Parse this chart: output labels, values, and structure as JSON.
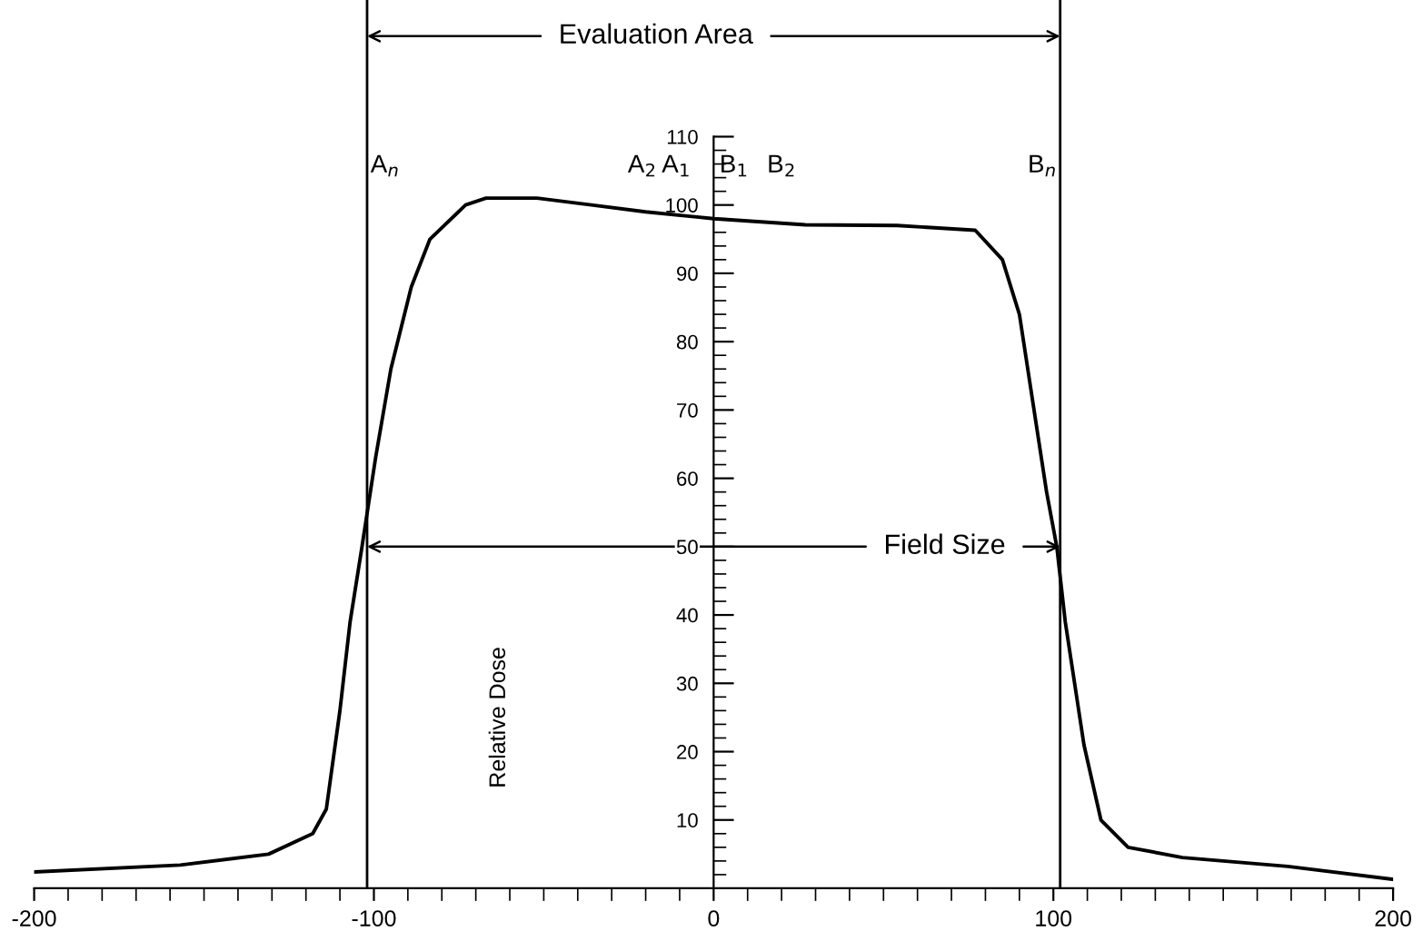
{
  "chart_data": {
    "type": "line",
    "ylabel": "Relative Dose",
    "x": [
      -200,
      -157,
      -131,
      -118,
      -114,
      -110,
      -107,
      -103.5,
      -99.5,
      -95,
      -89,
      -83.5,
      -73,
      -67,
      -52,
      -36,
      -20,
      0,
      27,
      54,
      77,
      85,
      90,
      94,
      98,
      101,
      103.5,
      109,
      114,
      122,
      138,
      169,
      200
    ],
    "series": [
      {
        "color": "#000000",
        "values": [
          2.4,
          3.4,
          5,
          8,
          11.6,
          26,
          39,
          50,
          63,
          76,
          88,
          95,
          100,
          101,
          101,
          100,
          99,
          98,
          97.1,
          97,
          96.3,
          92,
          84,
          71,
          58,
          50,
          39,
          21,
          10,
          6,
          4.5,
          3.2,
          1.3
        ]
      }
    ],
    "xlim": [
      -200,
      200
    ],
    "ylim": [
      0,
      130
    ],
    "xticks": [
      -200,
      {
        "value": -190,
        "label": null
      },
      {
        "value": -180,
        "label": null
      },
      {
        "value": -170,
        "label": null
      },
      {
        "value": -160,
        "label": null
      },
      {
        "value": -150,
        "label": null
      },
      {
        "value": -140,
        "label": null
      },
      {
        "value": -130,
        "label": null
      },
      {
        "value": -120,
        "label": null
      },
      {
        "value": -110,
        "label": null
      },
      -100,
      {
        "value": -90,
        "label": null
      },
      {
        "value": -80,
        "label": null
      },
      {
        "value": -70,
        "label": null
      },
      {
        "value": -60,
        "label": null
      },
      {
        "value": -50,
        "label": null
      },
      {
        "value": -40,
        "label": null
      },
      {
        "value": -30,
        "label": null
      },
      {
        "value": -20,
        "label": null
      },
      {
        "value": -10,
        "label": null
      },
      0,
      {
        "value": 10,
        "label": null
      },
      {
        "value": 20,
        "label": null
      },
      {
        "value": 30,
        "label": null
      },
      {
        "value": 40,
        "label": null
      },
      {
        "value": 50,
        "label": null
      },
      {
        "value": 60,
        "label": null
      },
      {
        "value": 70,
        "label": null
      },
      {
        "value": 80,
        "label": null
      },
      {
        "value": 90,
        "label": null
      },
      100,
      {
        "value": 110,
        "label": null
      },
      {
        "value": 120,
        "label": null
      },
      {
        "value": 130,
        "label": null
      },
      {
        "value": 140,
        "label": null
      },
      {
        "value": 150,
        "label": null
      },
      {
        "value": 160,
        "label": null
      },
      {
        "value": 170,
        "label": null
      },
      {
        "value": 180,
        "label": null
      },
      {
        "value": 190,
        "label": null
      },
      200
    ],
    "yticks": [
      {
        "value": 2,
        "label": null
      },
      {
        "value": 4,
        "label": null
      },
      {
        "value": 6,
        "label": null
      },
      {
        "value": 8,
        "label": null
      },
      10,
      {
        "value": 12,
        "label": null
      },
      {
        "value": 14,
        "label": null
      },
      {
        "value": 16,
        "label": null
      },
      {
        "value": 18,
        "label": null
      },
      20,
      {
        "value": 22,
        "label": null
      },
      {
        "value": 24,
        "label": null
      },
      {
        "value": 26,
        "label": null
      },
      {
        "value": 28,
        "label": null
      },
      30,
      {
        "value": 32,
        "label": null
      },
      {
        "value": 34,
        "label": null
      },
      {
        "value": 36,
        "label": null
      },
      {
        "value": 38,
        "label": null
      },
      40,
      {
        "value": 42,
        "label": null
      },
      {
        "value": 44,
        "label": null
      },
      {
        "value": 46,
        "label": null
      },
      {
        "value": 48,
        "label": null
      },
      50,
      {
        "value": 52,
        "label": null
      },
      {
        "value": 54,
        "label": null
      },
      {
        "value": 56,
        "label": null
      },
      {
        "value": 58,
        "label": null
      },
      60,
      {
        "value": 62,
        "label": null
      },
      {
        "value": 64,
        "label": null
      },
      {
        "value": 66,
        "label": null
      },
      {
        "value": 68,
        "label": null
      },
      70,
      {
        "value": 72,
        "label": null
      },
      {
        "value": 74,
        "label": null
      },
      {
        "value": 76,
        "label": null
      },
      {
        "value": 78,
        "label": null
      },
      80,
      {
        "value": 82,
        "label": null
      },
      {
        "value": 84,
        "label": null
      },
      {
        "value": 86,
        "label": null
      },
      {
        "value": 88,
        "label": null
      },
      90,
      {
        "value": 92,
        "label": null
      },
      {
        "value": 94,
        "label": null
      },
      {
        "value": 96,
        "label": null
      },
      {
        "value": 98,
        "label": null
      },
      100,
      {
        "value": 102,
        "label": null
      },
      {
        "value": 104,
        "label": null
      },
      {
        "value": 106,
        "label": null
      },
      {
        "value": 108,
        "label": null
      },
      110
    ],
    "ref_lines": [
      {
        "axis": "x",
        "value": -102,
        "color": "#000000"
      },
      {
        "axis": "x",
        "value": 102,
        "color": "#000000"
      }
    ],
    "annotations": [
      {
        "text": "Evaluation Area",
        "x": 102,
        "y": 124.7
      },
      {
        "text": "Field Size",
        "x": 102,
        "y": 50
      },
      "A$_{n}$",
      "A$_{2}$",
      "A$_{1}$",
      "B$_{1}$",
      "B$_{2}$",
      "B$_{n}$"
    ],
    "grid": false,
    "legend": false,
    "marker": "none",
    "line_style": "solid"
  }
}
